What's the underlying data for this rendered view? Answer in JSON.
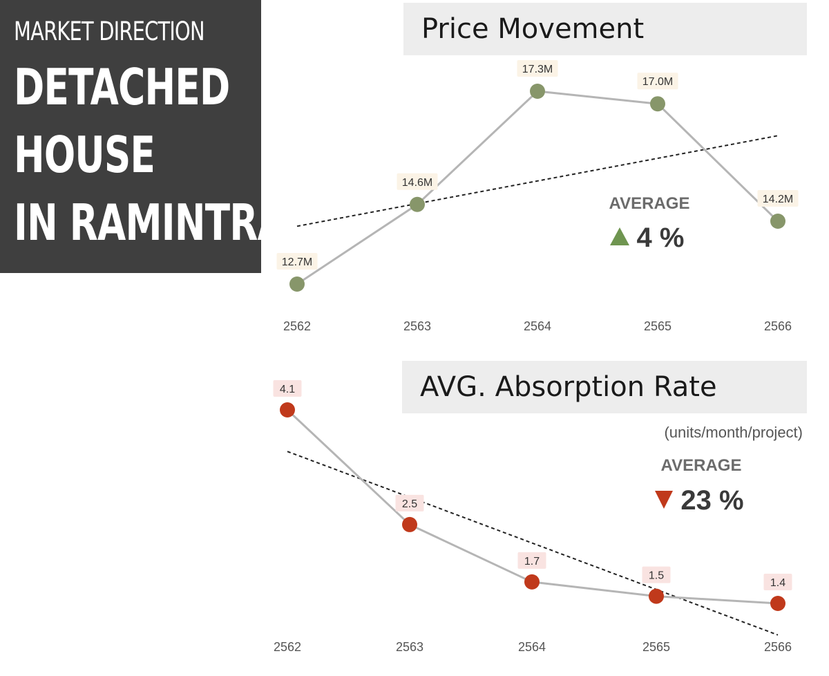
{
  "header": {
    "subtitle": "MARKET DIRECTION",
    "title_lines": [
      "DETACHED",
      "HOUSE",
      "IN RAMINTRA"
    ]
  },
  "chart_data": [
    {
      "type": "line",
      "title": "Price Movement",
      "categories": [
        "2562",
        "2563",
        "2564",
        "2565",
        "2566"
      ],
      "values": [
        12.7,
        14.6,
        17.3,
        17.0,
        14.2
      ],
      "labels": [
        "12.7M",
        "14.6M",
        "17.3M",
        "17.0M",
        "14.2M"
      ],
      "trendline": true,
      "point_color": "#87966a",
      "label_bg": "#fbf3e6",
      "summary_label": "AVERAGE",
      "summary_value": "4 %",
      "summary_direction": "up",
      "summary_color": "#6f9550",
      "ylim": [
        12.0,
        18.0
      ]
    },
    {
      "type": "line",
      "title": "AVG. Absorption Rate",
      "unit_note": "(units/month/project)",
      "categories": [
        "2562",
        "2563",
        "2564",
        "2565",
        "2566"
      ],
      "values": [
        4.1,
        2.5,
        1.7,
        1.5,
        1.4
      ],
      "labels": [
        "4.1",
        "2.5",
        "1.7",
        "1.5",
        "1.4"
      ],
      "trendline": true,
      "point_color": "#c0391b",
      "label_bg": "#f9e3e1",
      "summary_label": "AVERAGE",
      "summary_value": "23 %",
      "summary_direction": "down",
      "summary_color": "#c0391b",
      "ylim": [
        1.2,
        4.3
      ]
    }
  ]
}
